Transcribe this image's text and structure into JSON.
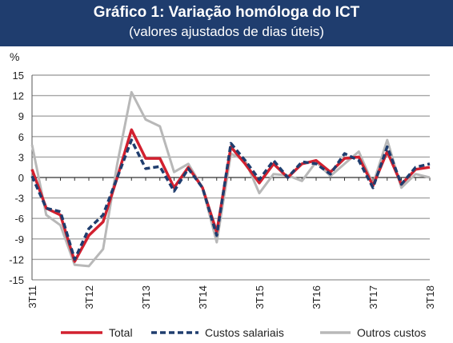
{
  "header": {
    "title": "Gráfico 1: Variação homóloga do ICT",
    "subtitle": "(valores ajustados de dias úteis)"
  },
  "chart_data": {
    "type": "line",
    "title": "Gráfico 1: Variação homóloga do ICT",
    "subtitle": "(valores ajustados de dias úteis)",
    "ylabel": "%",
    "ylim": [
      -15,
      15
    ],
    "yticks": [
      -15,
      -12,
      -9,
      -6,
      -3,
      0,
      3,
      6,
      9,
      12,
      15
    ],
    "grid": true,
    "legend_position": "bottom",
    "x_tick_labels": [
      "3T11",
      "3T12",
      "3T13",
      "3T14",
      "3T15",
      "3T16",
      "3T17",
      "3T18"
    ],
    "x_tick_index": [
      0,
      4,
      8,
      12,
      16,
      20,
      24,
      28
    ],
    "series": [
      {
        "name": "Total",
        "color": "#d2202f",
        "style": "solid",
        "values": [
          1.2,
          -4.5,
          -5.5,
          -12.3,
          -8.5,
          -6.5,
          0.0,
          7.0,
          2.8,
          2.8,
          -1.5,
          1.5,
          -1.5,
          -8.0,
          4.5,
          2.0,
          -0.8,
          2.0,
          0.0,
          2.0,
          2.5,
          0.8,
          2.8,
          3.0,
          -1.2,
          3.8,
          -1.0,
          1.2,
          1.5
        ]
      },
      {
        "name": "Custos salariais",
        "color": "#1f3d6e",
        "style": "dashed",
        "values": [
          0.2,
          -4.5,
          -5.0,
          -12.0,
          -7.5,
          -5.5,
          0.0,
          5.5,
          1.3,
          1.6,
          -2.0,
          1.3,
          -1.5,
          -8.5,
          5.0,
          2.5,
          -0.3,
          2.5,
          0.0,
          2.3,
          2.0,
          0.5,
          3.5,
          2.5,
          -1.5,
          4.5,
          -1.0,
          1.5,
          2.0
        ]
      },
      {
        "name": "Outros custos",
        "color": "#b8b8b8",
        "style": "solid",
        "values": [
          4.8,
          -5.5,
          -7.0,
          -12.8,
          -13.0,
          -10.5,
          2.0,
          12.5,
          8.5,
          7.5,
          0.8,
          2.0,
          -1.5,
          -9.5,
          3.5,
          2.5,
          -2.3,
          0.5,
          0.3,
          -0.5,
          2.3,
          0.2,
          2.0,
          3.8,
          -1.0,
          5.5,
          -1.5,
          0.5,
          0.0
        ]
      }
    ]
  }
}
